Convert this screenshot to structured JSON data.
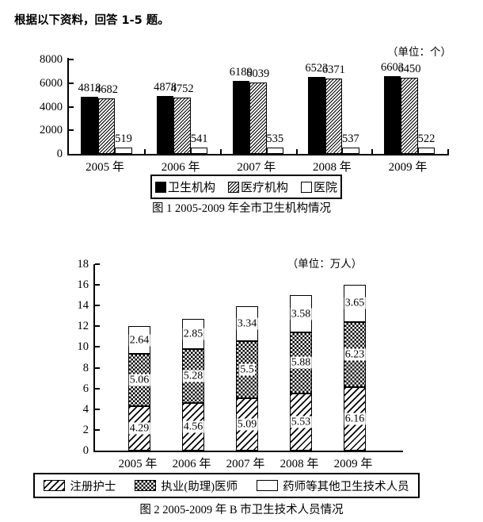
{
  "page": {
    "header": "根据以下资料，回答 1-5 题。"
  },
  "chart_data": [
    {
      "type": "bar",
      "caption": "图 1  2005-2009 年全市卫生机构情况",
      "unit_label": "（单位：个）",
      "categories": [
        "2005 年",
        "2006 年",
        "2007 年",
        "2008 年",
        "2009 年"
      ],
      "series": [
        {
          "name": "卫生机构",
          "style": "solid",
          "values": [
            4818,
            4878,
            6189,
            6523,
            6603
          ]
        },
        {
          "name": "医疗机构",
          "style": "hatch-fine",
          "values": [
            4682,
            4752,
            6039,
            6371,
            6450
          ]
        },
        {
          "name": "医院",
          "style": "white",
          "values": [
            519,
            541,
            535,
            537,
            522
          ]
        }
      ],
      "ylim": [
        0,
        8000
      ],
      "ytick_step": 2000,
      "grid": false,
      "legend_position": "bottom",
      "value_labels": "above-bars"
    },
    {
      "type": "stacked-bar",
      "caption": "图 2  2005-2009 年 B 市卫生技术人员情况",
      "unit_label": "（单位：万人）",
      "categories": [
        "2005 年",
        "2006 年",
        "2007 年",
        "2008 年",
        "2009 年"
      ],
      "series": [
        {
          "name": "注册护士",
          "style": "hatch",
          "values": [
            4.29,
            4.56,
            5.09,
            5.53,
            6.16
          ]
        },
        {
          "name": "执业(助理)医师",
          "style": "checker",
          "values": [
            5.06,
            5.28,
            5.5,
            5.88,
            6.23
          ]
        },
        {
          "name": "药师等其他卫生技术人员",
          "style": "white",
          "values": [
            2.64,
            2.85,
            3.34,
            3.58,
            3.65
          ]
        }
      ],
      "ylim": [
        0,
        18
      ],
      "ytick_step": 2,
      "grid": false,
      "legend_position": "bottom",
      "value_labels": "inside-segments"
    }
  ]
}
